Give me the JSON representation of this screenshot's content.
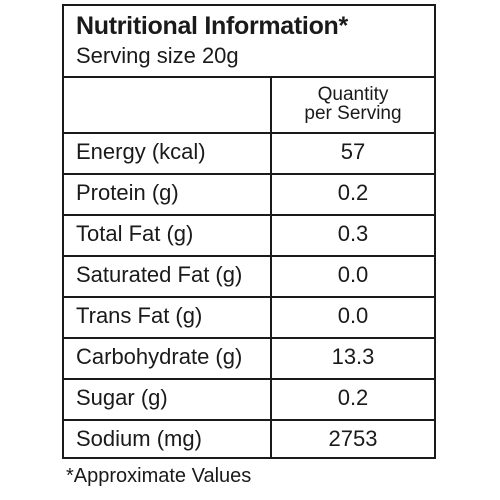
{
  "panel": {
    "title": "Nutritional Information*",
    "serving_size": "Serving size 20g",
    "column_header": [
      "Quantity",
      "per Serving"
    ]
  },
  "rows": [
    {
      "label": "Energy (kcal)",
      "value": "57"
    },
    {
      "label": "Protein (g)",
      "value": "0.2"
    },
    {
      "label": "Total Fat (g)",
      "value": "0.3"
    },
    {
      "label": "Saturated Fat (g)",
      "value": "0.0"
    },
    {
      "label": "Trans Fat (g)",
      "value": "0.0"
    },
    {
      "label": "Carbohydrate (g)",
      "value": "13.3"
    },
    {
      "label": "Sugar (g)",
      "value": "0.2"
    },
    {
      "label": "Sodium (mg)",
      "value": "2753"
    }
  ],
  "footnote": "*Approximate Values"
}
